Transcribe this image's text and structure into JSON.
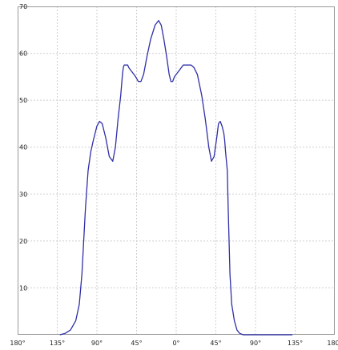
{
  "chart_data": {
    "type": "line",
    "title": "",
    "xlabel": "",
    "ylabel": "",
    "xlim": [
      -180,
      180
    ],
    "ylim": [
      0,
      70
    ],
    "x_ticks": [
      -180,
      -135,
      -90,
      -45,
      0,
      45,
      90,
      135,
      180
    ],
    "x_tick_labels": [
      "180°",
      "135°",
      "90°",
      "45°",
      "0°",
      "45°",
      "90°",
      "135°",
      "180°"
    ],
    "y_ticks": [
      10,
      20,
      30,
      40,
      50,
      60,
      70
    ],
    "y_tick_labels": [
      "10",
      "20",
      "30",
      "40",
      "50",
      "60",
      "70"
    ],
    "grid": true,
    "legend": "none",
    "series": [
      {
        "color": "#2f2fa8",
        "x": [
          -132,
          -126,
          -120,
          -114,
          -110,
          -107,
          -105,
          -103,
          -100,
          -97,
          -94,
          -92,
          -90,
          -87,
          -84,
          -80,
          -76,
          -72,
          -69,
          -66,
          -63,
          -61,
          -60,
          -59,
          -58,
          -56,
          -55,
          -54,
          -52,
          -50,
          -48,
          -46,
          -43,
          -40,
          -37,
          -33,
          -29,
          -24,
          -20,
          -17,
          -14,
          -11,
          -8,
          -6,
          -4,
          -2,
          0,
          2,
          4,
          6,
          8,
          11,
          14,
          17,
          20,
          24,
          29,
          33,
          37,
          40,
          43,
          46,
          48,
          50,
          52,
          54,
          55,
          56,
          58,
          59,
          60,
          61,
          63,
          66,
          69,
          72,
          76,
          80,
          84,
          87,
          90,
          92,
          94,
          97,
          100,
          103,
          105,
          107,
          110,
          114,
          120,
          126,
          132
        ],
        "y": [
          0.0,
          0.3,
          1.0,
          3.0,
          6.5,
          13.0,
          20.0,
          27.0,
          35.0,
          39.0,
          41.5,
          43.0,
          44.5,
          45.5,
          45.0,
          42.0,
          38.0,
          37.0,
          40.0,
          46.0,
          51.0,
          55.5,
          57.0,
          57.5,
          57.5,
          57.5,
          57.5,
          57.0,
          56.5,
          56.0,
          55.5,
          55.0,
          54.0,
          54.0,
          55.5,
          59.5,
          63.0,
          66.0,
          67.0,
          66.0,
          63.0,
          59.5,
          55.5,
          54.0,
          54.0,
          55.0,
          55.5,
          56.0,
          56.5,
          57.0,
          57.5,
          57.5,
          57.5,
          57.5,
          57.0,
          55.5,
          51.0,
          46.0,
          40.0,
          37.0,
          38.0,
          42.0,
          45.0,
          45.5,
          44.5,
          43.0,
          41.5,
          39.0,
          35.0,
          27.0,
          20.0,
          13.0,
          6.5,
          3.0,
          1.0,
          0.3,
          0.0,
          0.0,
          0.0,
          0.0,
          0.0,
          0.0,
          0.0,
          0.0,
          0.0,
          0.0,
          0.0,
          0.0,
          0.0,
          0.0,
          0.0,
          0.0,
          0.0
        ]
      }
    ],
    "colors": {
      "grid": "#cfcfcf",
      "axis": "#9a9a9a",
      "text": "#222222",
      "line": "#2f2fa8"
    }
  }
}
